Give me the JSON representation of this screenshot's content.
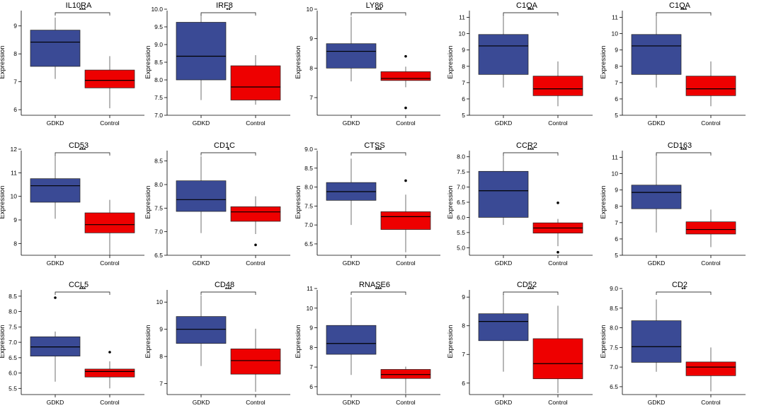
{
  "colors": {
    "gdkd": "#3a4a95",
    "control": "#ee0000",
    "axis": "#000000"
  },
  "chart_data": [
    {
      "type": "box",
      "title": "IL10RA",
      "ylabel": "Expression",
      "ylim": [
        5.8,
        9.6
      ],
      "yticks": [
        6,
        7,
        8,
        9
      ],
      "categories": [
        "GDKD",
        "Control"
      ],
      "significance": "***",
      "boxes": [
        {
          "name": "GDKD",
          "whisker_low": 7.1,
          "q1": 7.55,
          "median": 8.42,
          "q3": 8.85,
          "whisker_high": 9.3,
          "outliers": []
        },
        {
          "name": "Control",
          "whisker_low": 6.05,
          "q1": 6.78,
          "median": 7.05,
          "q3": 7.42,
          "whisker_high": 7.92,
          "outliers": []
        }
      ]
    },
    {
      "type": "box",
      "title": "IRF8",
      "ylabel": "Expression",
      "ylim": [
        7.0,
        10.0
      ],
      "yticks": [
        "7.0",
        "7.5",
        "8.0",
        "8.5",
        "9.0",
        "9.5",
        "10.0"
      ],
      "categories": [
        "GDKD",
        "Control"
      ],
      "significance": "**",
      "boxes": [
        {
          "name": "GDKD",
          "whisker_low": 7.43,
          "q1": 8.0,
          "median": 8.67,
          "q3": 9.63,
          "whisker_high": 9.85,
          "outliers": []
        },
        {
          "name": "Control",
          "whisker_low": 7.3,
          "q1": 7.43,
          "median": 7.8,
          "q3": 8.4,
          "whisker_high": 8.7,
          "outliers": []
        }
      ]
    },
    {
      "type": "box",
      "title": "LY86",
      "ylabel": "Expression",
      "ylim": [
        6.4,
        10.0
      ],
      "yticks": [
        7,
        8,
        9,
        10
      ],
      "categories": [
        "GDKD",
        "Control"
      ],
      "significance": "***",
      "boxes": [
        {
          "name": "GDKD",
          "whisker_low": 7.55,
          "q1": 8.0,
          "median": 8.57,
          "q3": 8.83,
          "whisker_high": 9.75,
          "outliers": []
        },
        {
          "name": "Control",
          "whisker_low": 7.35,
          "q1": 7.58,
          "median": 7.65,
          "q3": 7.88,
          "whisker_high": 8.05,
          "outliers": [
            8.4,
            6.65
          ]
        }
      ]
    },
    {
      "type": "box",
      "title": "C1QA",
      "ylabel": "Expression",
      "ylim": [
        5.0,
        11.5
      ],
      "yticks": [
        5,
        6,
        7,
        8,
        9,
        10,
        11
      ],
      "categories": [
        "GDKD",
        "Control"
      ],
      "significance": "***",
      "boxes": [
        {
          "name": "GDKD",
          "whisker_low": 6.7,
          "q1": 7.5,
          "median": 9.25,
          "q3": 9.95,
          "whisker_high": 11.15,
          "outliers": []
        },
        {
          "name": "Control",
          "whisker_low": 5.55,
          "q1": 6.2,
          "median": 6.62,
          "q3": 7.4,
          "whisker_high": 8.3,
          "outliers": []
        }
      ]
    },
    {
      "type": "box",
      "title": "C1QA",
      "ylabel": "Expression",
      "ylim": [
        5.0,
        11.5
      ],
      "yticks": [
        5,
        6,
        7,
        8,
        9,
        10,
        11
      ],
      "categories": [
        "GDKD",
        "Control"
      ],
      "significance": "***",
      "boxes": [
        {
          "name": "GDKD",
          "whisker_low": 6.7,
          "q1": 7.5,
          "median": 9.25,
          "q3": 9.95,
          "whisker_high": 11.15,
          "outliers": []
        },
        {
          "name": "Control",
          "whisker_low": 5.55,
          "q1": 6.2,
          "median": 6.62,
          "q3": 7.4,
          "whisker_high": 8.3,
          "outliers": []
        }
      ]
    },
    {
      "type": "box",
      "title": "CD53",
      "ylabel": "Expression",
      "ylim": [
        7.5,
        12.0
      ],
      "yticks": [
        8,
        9,
        10,
        11,
        12
      ],
      "categories": [
        "GDKD",
        "Control"
      ],
      "significance": "***",
      "boxes": [
        {
          "name": "GDKD",
          "whisker_low": 9.05,
          "q1": 9.75,
          "median": 10.45,
          "q3": 10.75,
          "whisker_high": 11.75,
          "outliers": []
        },
        {
          "name": "Control",
          "whisker_low": 7.5,
          "q1": 8.45,
          "median": 8.8,
          "q3": 9.3,
          "whisker_high": 9.85,
          "outliers": []
        }
      ]
    },
    {
      "type": "box",
      "title": "CD1C",
      "ylabel": "Expression",
      "ylim": [
        6.5,
        8.75
      ],
      "yticks": [
        "6.5",
        "7.0",
        "7.5",
        "8.0",
        "8.5"
      ],
      "categories": [
        "GDKD",
        "Control"
      ],
      "significance": "*",
      "boxes": [
        {
          "name": "GDKD",
          "whisker_low": 6.97,
          "q1": 7.43,
          "median": 7.68,
          "q3": 8.08,
          "whisker_high": 8.6,
          "outliers": []
        },
        {
          "name": "Control",
          "whisker_low": 6.95,
          "q1": 7.22,
          "median": 7.42,
          "q3": 7.53,
          "whisker_high": 7.75,
          "outliers": [
            6.72
          ]
        }
      ]
    },
    {
      "type": "box",
      "title": "CTSS",
      "ylabel": "Expression",
      "ylim": [
        6.2,
        9.0
      ],
      "yticks": [
        "6.5",
        "7.0",
        "7.5",
        "8.0",
        "8.5",
        "9.0"
      ],
      "categories": [
        "GDKD",
        "Control"
      ],
      "significance": "***",
      "boxes": [
        {
          "name": "GDKD",
          "whisker_low": 7.0,
          "q1": 7.65,
          "median": 7.88,
          "q3": 8.12,
          "whisker_high": 8.75,
          "outliers": []
        },
        {
          "name": "Control",
          "whisker_low": 6.28,
          "q1": 6.88,
          "median": 7.22,
          "q3": 7.35,
          "whisker_high": 7.8,
          "outliers": [
            8.17
          ]
        }
      ]
    },
    {
      "type": "box",
      "title": "CCR2",
      "ylabel": "Expression",
      "ylim": [
        4.75,
        8.25
      ],
      "yticks": [
        "5.0",
        "5.5",
        "6.0",
        "6.5",
        "7.0",
        "7.5",
        "8.0"
      ],
      "categories": [
        "GDKD",
        "Control"
      ],
      "significance": "***",
      "boxes": [
        {
          "name": "GDKD",
          "whisker_low": 5.75,
          "q1": 6.0,
          "median": 6.88,
          "q3": 7.52,
          "whisker_high": 8.05,
          "outliers": []
        },
        {
          "name": "Control",
          "whisker_low": 5.05,
          "q1": 5.48,
          "median": 5.65,
          "q3": 5.82,
          "whisker_high": 5.95,
          "outliers": [
            6.48,
            4.85
          ]
        }
      ]
    },
    {
      "type": "box",
      "title": "CD163",
      "ylabel": "Expression",
      "ylim": [
        5.0,
        11.5
      ],
      "yticks": [
        5,
        6,
        7,
        8,
        9,
        10,
        11
      ],
      "categories": [
        "GDKD",
        "Control"
      ],
      "significance": "***",
      "boxes": [
        {
          "name": "GDKD",
          "whisker_low": 6.4,
          "q1": 7.85,
          "median": 8.85,
          "q3": 9.3,
          "whisker_high": 11.2,
          "outliers": []
        },
        {
          "name": "Control",
          "whisker_low": 5.5,
          "q1": 6.3,
          "median": 6.58,
          "q3": 7.05,
          "whisker_high": 7.8,
          "outliers": []
        }
      ]
    },
    {
      "type": "box",
      "title": "CCL5",
      "ylabel": "Expression",
      "ylim": [
        5.3,
        8.75
      ],
      "yticks": [
        "5.5",
        "6.0",
        "6.5",
        "7.0",
        "7.5",
        "8.0",
        "8.5"
      ],
      "categories": [
        "GDKD",
        "Control"
      ],
      "significance": "***",
      "boxes": [
        {
          "name": "GDKD",
          "whisker_low": 5.72,
          "q1": 6.55,
          "median": 6.85,
          "q3": 7.18,
          "whisker_high": 7.35,
          "outliers": [
            8.45
          ]
        },
        {
          "name": "Control",
          "whisker_low": 5.5,
          "q1": 5.87,
          "median": 6.05,
          "q3": 6.13,
          "whisker_high": 6.38,
          "outliers": [
            6.68
          ]
        }
      ]
    },
    {
      "type": "box",
      "title": "CD48",
      "ylabel": "Expression",
      "ylim": [
        6.6,
        10.5
      ],
      "yticks": [
        7,
        8,
        9,
        10
      ],
      "categories": [
        "GDKD",
        "Control"
      ],
      "significance": "***",
      "boxes": [
        {
          "name": "GDKD",
          "whisker_low": 7.65,
          "q1": 8.48,
          "median": 9.0,
          "q3": 9.47,
          "whisker_high": 10.25,
          "outliers": []
        },
        {
          "name": "Control",
          "whisker_low": 6.7,
          "q1": 7.35,
          "median": 7.85,
          "q3": 8.28,
          "whisker_high": 9.02,
          "outliers": []
        }
      ]
    },
    {
      "type": "box",
      "title": "RNASE6",
      "ylabel": "Expression",
      "ylim": [
        5.6,
        11.0
      ],
      "yticks": [
        6,
        7,
        8,
        9,
        10,
        11
      ],
      "categories": [
        "GDKD",
        "Control"
      ],
      "significance": "***",
      "boxes": [
        {
          "name": "GDKD",
          "whisker_low": 6.6,
          "q1": 7.65,
          "median": 8.2,
          "q3": 9.12,
          "whisker_high": 10.55,
          "outliers": []
        },
        {
          "name": "Control",
          "whisker_low": 5.65,
          "q1": 6.42,
          "median": 6.62,
          "q3": 6.88,
          "whisker_high": 7.02,
          "outliers": []
        }
      ]
    },
    {
      "type": "box",
      "title": "CD52",
      "ylabel": "Expression",
      "ylim": [
        5.6,
        9.3
      ],
      "yticks": [
        6,
        7,
        8,
        9
      ],
      "categories": [
        "GDKD",
        "Control"
      ],
      "significance": "***",
      "boxes": [
        {
          "name": "GDKD",
          "whisker_low": 6.4,
          "q1": 7.48,
          "median": 8.15,
          "q3": 8.42,
          "whisker_high": 9.1,
          "outliers": []
        },
        {
          "name": "Control",
          "whisker_low": 5.65,
          "q1": 6.15,
          "median": 6.68,
          "q3": 7.55,
          "whisker_high": 8.7,
          "outliers": []
        }
      ]
    },
    {
      "type": "box",
      "title": "CD2",
      "ylabel": "Expression",
      "ylim": [
        6.3,
        9.0
      ],
      "yticks": [
        "6.5",
        "7.0",
        "7.5",
        "8.0",
        "8.5",
        "9.0"
      ],
      "categories": [
        "GDKD",
        "Control"
      ],
      "significance": "**",
      "boxes": [
        {
          "name": "GDKD",
          "whisker_low": 6.88,
          "q1": 7.12,
          "median": 7.52,
          "q3": 8.18,
          "whisker_high": 8.72,
          "outliers": []
        },
        {
          "name": "Control",
          "whisker_low": 6.38,
          "q1": 6.78,
          "median": 7.0,
          "q3": 7.13,
          "whisker_high": 7.5,
          "outliers": []
        }
      ]
    }
  ]
}
